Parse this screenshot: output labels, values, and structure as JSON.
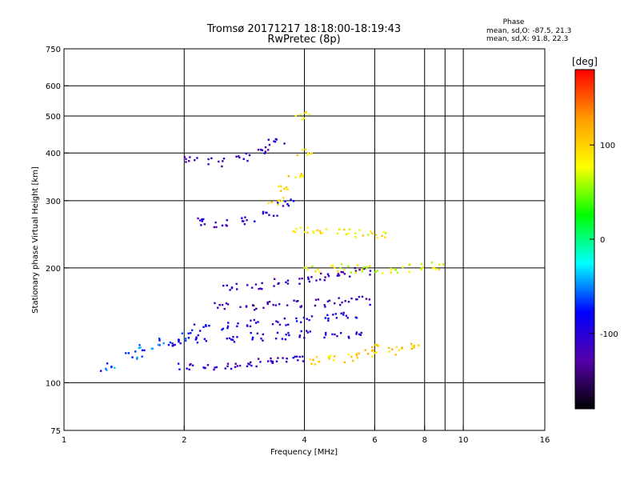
{
  "chart_data": {
    "type": "scatter",
    "title": "Tromsø 20171217 18:18:00-18:19:43",
    "subtitle": "RwPretec (8p)",
    "xlabel": "Frequency [MHz]",
    "ylabel": "Stationary phase Virtual Height [km]",
    "x_scale": "log",
    "y_scale": "log",
    "xlim": [
      1,
      16
    ],
    "ylim": [
      75,
      750
    ],
    "x_ticks": [
      1,
      2,
      4,
      6,
      8,
      10,
      16
    ],
    "x_ticklabels": [
      "1",
      "2",
      "4",
      "6",
      "8",
      "10",
      "16"
    ],
    "x_grid": [
      2,
      4,
      6,
      8,
      9,
      10
    ],
    "y_ticks": [
      75,
      100,
      200,
      300,
      400,
      500,
      600,
      750
    ],
    "y_ticklabels": [
      "75",
      "100",
      "200",
      "300",
      "400",
      "500",
      "600",
      "750"
    ],
    "y_grid": [
      100,
      200,
      300,
      400,
      500,
      600
    ],
    "grid": true,
    "phase_box": {
      "title": "Phase",
      "lines": [
        "mean, sd,O: -87.5, 21.3",
        "mean, sd,X:  91.8, 22.3"
      ]
    },
    "colorbar": {
      "label": "[deg]",
      "range": [
        -180,
        180
      ],
      "ticks": [
        100,
        0,
        -100
      ],
      "tick_labels": [
        "100",
        "0",
        "-100"
      ],
      "colors": [
        "#ff0000",
        "#ff9900",
        "#ffff00",
        "#00ff00",
        "#00ffff",
        "#0000ff",
        "#5500aa",
        "#000000"
      ]
    },
    "series": [
      {
        "color_phase": -110,
        "points": [
          [
            2.0,
            110
          ],
          [
            2.3,
            110
          ],
          [
            2.6,
            111
          ],
          [
            2.9,
            112
          ],
          [
            3.2,
            113
          ],
          [
            3.5,
            114
          ],
          [
            3.9,
            116
          ]
        ]
      },
      {
        "color_phase": -100,
        "points": [
          [
            1.9,
            128
          ],
          [
            2.2,
            130
          ],
          [
            2.6,
            131
          ],
          [
            3.0,
            132
          ],
          [
            3.5,
            133
          ],
          [
            4.0,
            134
          ],
          [
            4.7,
            133
          ],
          [
            5.3,
            134
          ]
        ]
      },
      {
        "color_phase": -95,
        "points": [
          [
            2.2,
            140
          ],
          [
            2.6,
            141
          ],
          [
            3.0,
            143
          ],
          [
            3.5,
            145
          ],
          [
            4.0,
            147
          ],
          [
            4.6,
            148
          ],
          [
            5.2,
            150
          ]
        ]
      },
      {
        "color_phase": -120,
        "points": [
          [
            2.5,
            158
          ],
          [
            2.9,
            159
          ],
          [
            3.3,
            160
          ],
          [
            3.8,
            161
          ],
          [
            4.4,
            162
          ],
          [
            5.0,
            163
          ],
          [
            5.6,
            164
          ]
        ]
      },
      {
        "color_phase": -115,
        "points": [
          [
            2.6,
            178
          ],
          [
            3.0,
            180
          ],
          [
            3.5,
            183
          ],
          [
            4.0,
            186
          ],
          [
            4.5,
            190
          ],
          [
            5.0,
            193
          ],
          [
            5.6,
            196
          ]
        ]
      },
      {
        "color_phase": -105,
        "points": [
          [
            2.2,
            265
          ],
          [
            2.5,
            262
          ],
          [
            2.9,
            266
          ],
          [
            3.3,
            278
          ],
          [
            3.6,
            295
          ]
        ]
      },
      {
        "color_phase": -110,
        "points": [
          [
            2.1,
            385
          ],
          [
            2.4,
            378
          ],
          [
            2.8,
            390
          ],
          [
            3.1,
            405
          ],
          [
            3.4,
            430
          ]
        ]
      },
      {
        "color_phase": 95,
        "points": [
          [
            3.4,
            300
          ],
          [
            3.6,
            320
          ],
          [
            3.8,
            350
          ],
          [
            4.0,
            400
          ],
          [
            4.0,
            500
          ]
        ]
      },
      {
        "color_phase": 85,
        "points": [
          [
            3.9,
            250
          ],
          [
            4.4,
            248
          ],
          [
            5.0,
            247
          ],
          [
            5.6,
            246
          ],
          [
            6.2,
            245
          ]
        ]
      },
      {
        "color_phase": 75,
        "points": [
          [
            4.2,
            200
          ],
          [
            4.8,
            200
          ],
          [
            5.4,
            199
          ],
          [
            6.0,
            198
          ],
          [
            6.8,
            199
          ],
          [
            7.6,
            200
          ],
          [
            8.5,
            202
          ]
        ]
      },
      {
        "color_phase": 100,
        "points": [
          [
            4.3,
            114
          ],
          [
            4.8,
            115
          ],
          [
            5.3,
            117
          ],
          [
            5.8,
            120
          ],
          [
            6.2,
            123
          ],
          [
            6.8,
            121
          ],
          [
            7.5,
            124
          ]
        ]
      },
      {
        "color_phase": -60,
        "points": [
          [
            1.3,
            110
          ],
          [
            1.5,
            118
          ],
          [
            1.6,
            124
          ],
          [
            1.8,
            128
          ],
          [
            2.0,
            132
          ]
        ]
      }
    ]
  }
}
